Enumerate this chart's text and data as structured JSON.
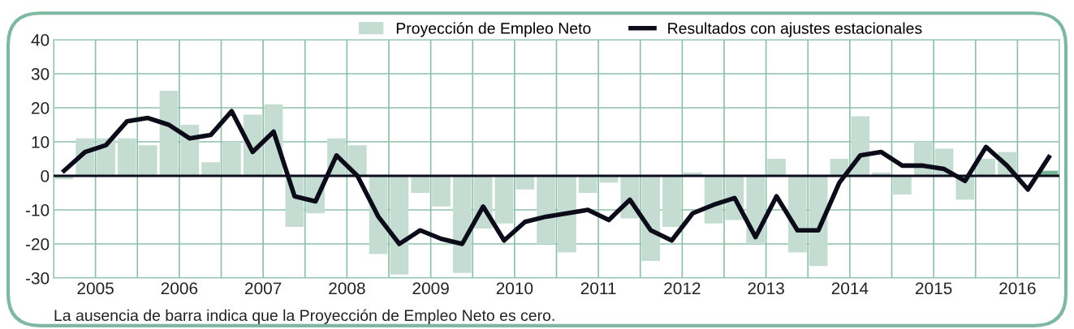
{
  "chart_data": {
    "type": "bar",
    "x": [
      2005.125,
      2005.375,
      2005.625,
      2005.875,
      2006.125,
      2006.375,
      2006.625,
      2006.875,
      2007.125,
      2007.375,
      2007.625,
      2007.875,
      2008.125,
      2008.375,
      2008.625,
      2008.875,
      2009.125,
      2009.375,
      2009.625,
      2009.875,
      2010.125,
      2010.375,
      2010.625,
      2010.875,
      2011.125,
      2011.375,
      2011.625,
      2011.875,
      2012.125,
      2012.375,
      2012.625,
      2012.875,
      2013.125,
      2013.375,
      2013.625,
      2013.875,
      2014.125,
      2014.375,
      2014.625,
      2014.875,
      2015.125,
      2015.375,
      2015.625,
      2015.875,
      2016.125,
      2016.375,
      2016.625,
      2016.875
    ],
    "series": [
      {
        "name": "Proyección de Empleo Neto",
        "color": "#c4dcd2",
        "colors": [
          "#c4dcd2",
          "#c4dcd2",
          "#c4dcd2",
          "#c4dcd2",
          "#c4dcd2",
          "#c4dcd2",
          "#c4dcd2",
          "#c4dcd2",
          "#c4dcd2",
          "#c4dcd2",
          "#c4dcd2",
          "#c4dcd2",
          "#c4dcd2",
          "#c4dcd2",
          "#c4dcd2",
          "#c4dcd2",
          "#c4dcd2",
          "#c4dcd2",
          "#c4dcd2",
          "#c4dcd2",
          "#c4dcd2",
          "#c4dcd2",
          "#c4dcd2",
          "#c4dcd2",
          "#c4dcd2",
          "#c4dcd2",
          "#c4dcd2",
          "#c4dcd2",
          "#c4dcd2",
          "#c4dcd2",
          "#c4dcd2",
          "#c4dcd2",
          "#c4dcd2",
          "#c4dcd2",
          "#c4dcd2",
          "#c4dcd2",
          "#c4dcd2",
          "#c4dcd2",
          "#c4dcd2",
          "#c4dcd2",
          "#c4dcd2",
          "#c4dcd2",
          "#c4dcd2",
          "#c4dcd2",
          "#c4dcd2",
          "#c4dcd2",
          "#c4dcd2",
          "#7ab39a"
        ],
        "values": [
          -1,
          11,
          11,
          11,
          9,
          25,
          15,
          4,
          10,
          18,
          21,
          -15,
          -11,
          11,
          9,
          -23,
          -29,
          -5,
          -9,
          -28.5,
          -15.5,
          -14,
          -4,
          -20,
          -22.5,
          -5,
          -2,
          -12.5,
          -25,
          -15,
          1,
          -14,
          -13,
          -20,
          5,
          -22.5,
          -26.5,
          5,
          17.5,
          1,
          -5.5,
          10,
          8,
          -7,
          5,
          7,
          null,
          1.5
        ]
      },
      {
        "name": "Resultados con ajustes estacionales",
        "type": "line",
        "color": "#0b0b1a",
        "values": [
          1.5,
          7,
          9,
          16,
          17,
          15,
          11,
          12,
          19,
          7,
          13,
          -6,
          -7.5,
          6,
          0,
          -12,
          -20,
          -16,
          -18.5,
          -20,
          -9,
          -19,
          -13.5,
          -12,
          -11,
          -10,
          -13,
          -7,
          -16,
          -19,
          -11,
          -8.5,
          -6.5,
          -18,
          -6,
          -16,
          -16,
          -2,
          6,
          7,
          3,
          3,
          2,
          -1.5,
          8.5,
          3,
          -4,
          5.5
        ]
      }
    ],
    "xlim": [
      2005,
      2017
    ],
    "xticks": [
      {
        "value": 2005,
        "label": null
      },
      {
        "value": 2005.5,
        "label": "2005"
      },
      {
        "value": 2006,
        "label": null
      },
      {
        "value": 2006.5,
        "label": "2006"
      },
      {
        "value": 2007,
        "label": null
      },
      {
        "value": 2007.5,
        "label": "2007"
      },
      {
        "value": 2008,
        "label": null
      },
      {
        "value": 2008.5,
        "label": "2008"
      },
      {
        "value": 2009,
        "label": null
      },
      {
        "value": 2009.5,
        "label": "2009"
      },
      {
        "value": 2010,
        "label": null
      },
      {
        "value": 2010.5,
        "label": "2010"
      },
      {
        "value": 2011,
        "label": null
      },
      {
        "value": 2011.5,
        "label": "2011"
      },
      {
        "value": 2012,
        "label": null
      },
      {
        "value": 2012.5,
        "label": "2012"
      },
      {
        "value": 2013,
        "label": null
      },
      {
        "value": 2013.5,
        "label": "2013"
      },
      {
        "value": 2014,
        "label": null
      },
      {
        "value": 2014.5,
        "label": "2014"
      },
      {
        "value": 2015,
        "label": null
      },
      {
        "value": 2015.5,
        "label": "2015"
      },
      {
        "value": 2016,
        "label": null
      },
      {
        "value": 2016.5,
        "label": "2016"
      },
      {
        "value": 2017,
        "label": null
      }
    ],
    "ylim": [
      -30,
      40
    ],
    "yticks": [
      -30,
      -20,
      -10,
      0,
      10,
      20,
      30,
      40
    ],
    "ref_lines": [
      {
        "axis": "y",
        "value": 0,
        "color": "#0b0b1a"
      }
    ],
    "grid": true,
    "legend": "top right",
    "annotations": [
      "La ausencia de barra indica que la Proyección de Empleo Neto es cero."
    ]
  }
}
